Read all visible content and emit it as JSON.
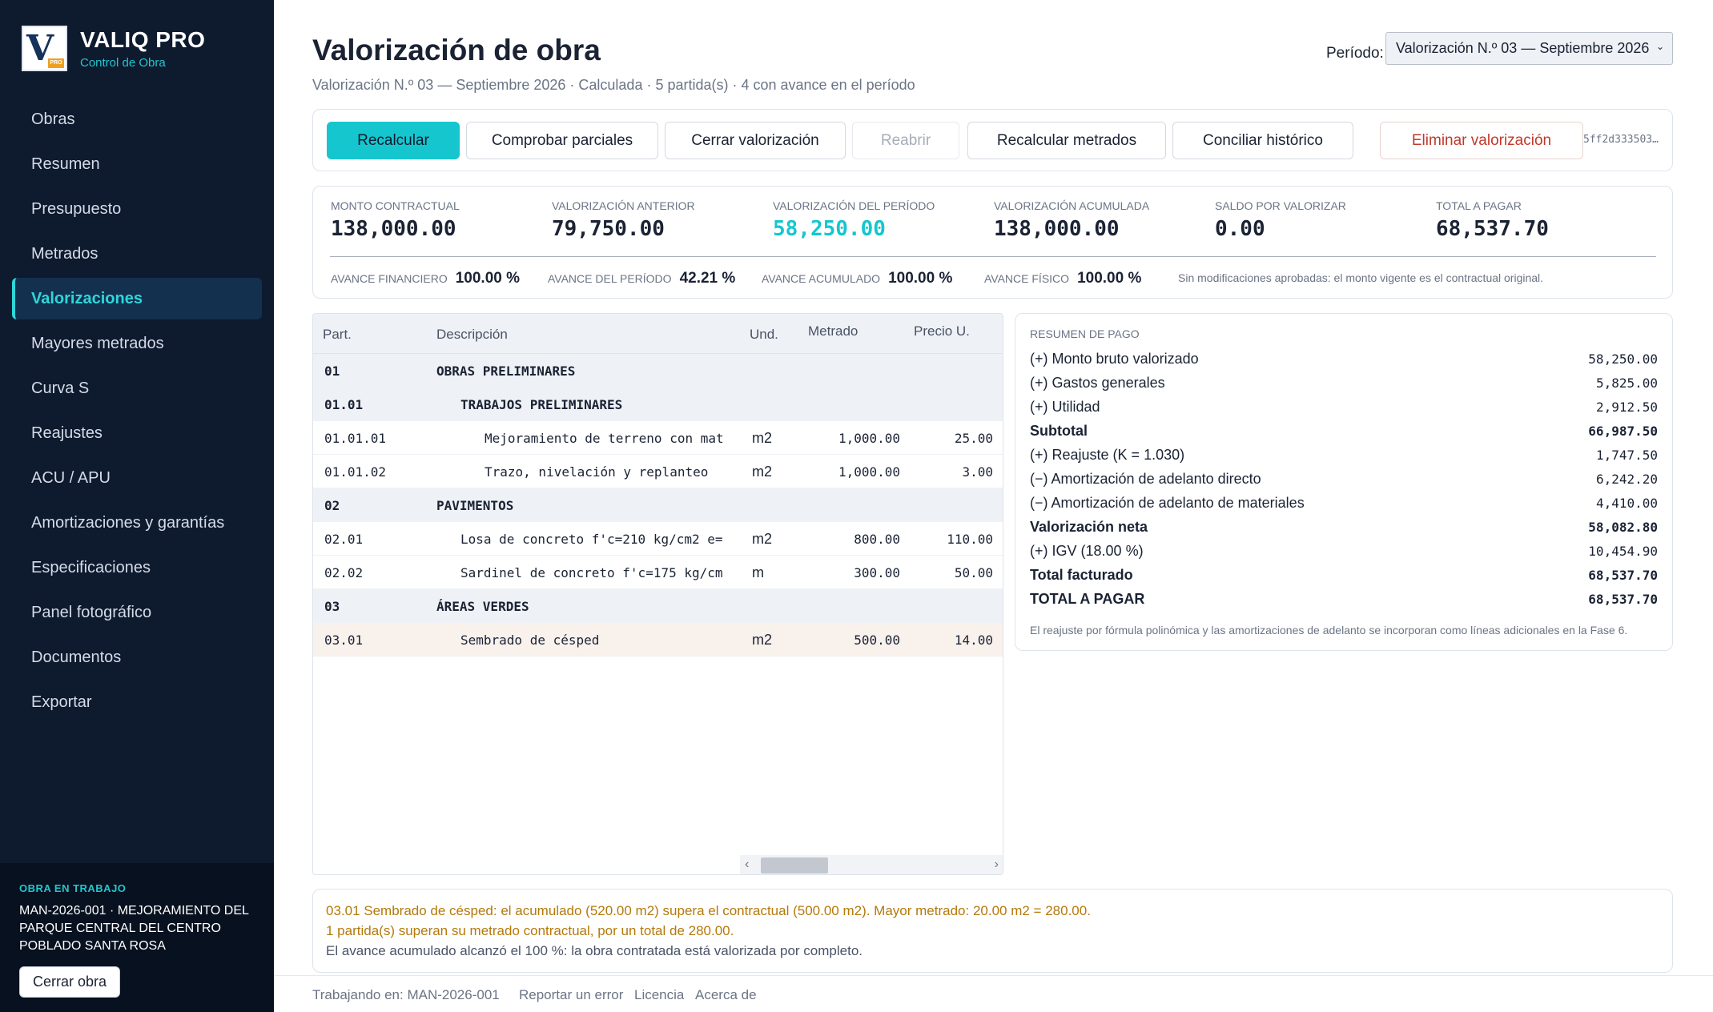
{
  "brand": {
    "name": "VALIQ PRO",
    "subtitle": "Control de Obra",
    "logo_letter": "V",
    "logo_tag": "PRO"
  },
  "nav": [
    {
      "label": "Obras"
    },
    {
      "label": "Resumen"
    },
    {
      "label": "Presupuesto"
    },
    {
      "label": "Metrados"
    },
    {
      "label": "Valorizaciones",
      "active": true
    },
    {
      "label": "Mayores metrados"
    },
    {
      "label": "Curva S"
    },
    {
      "label": "Reajustes"
    },
    {
      "label": "ACU / APU"
    },
    {
      "label": "Amortizaciones y garantías"
    },
    {
      "label": "Especificaciones"
    },
    {
      "label": "Panel fotográfico"
    },
    {
      "label": "Documentos"
    },
    {
      "label": "Exportar"
    }
  ],
  "obra": {
    "label": "OBRA EN TRABAJO",
    "name": "MAN-2026-001 · MEJORAMIENTO DEL PARQUE CENTRAL DEL CENTRO POBLADO SANTA ROSA",
    "close_label": "Cerrar obra"
  },
  "header": {
    "title": "Valorización de obra",
    "subtitle": "Valorización N.º 03 — Septiembre 2026  ·  Calculada · 5 partida(s) · 4 con avance en el período",
    "periodo_label": "Período:",
    "periodo_value": "Valorización N.º 03 — Septiembre 2026"
  },
  "toolbar": {
    "recalcular": "Recalcular",
    "comprobar": "Comprobar parciales",
    "cerrar": "Cerrar valorización",
    "reabrir": "Reabrir",
    "recalcular_metrados": "Recalcular metrados",
    "conciliar": "Conciliar histórico",
    "eliminar": "Eliminar valorización",
    "hash": "5ff2d333503…"
  },
  "summary": {
    "monto_contractual": {
      "label": "MONTO CONTRACTUAL",
      "value": "138,000.00"
    },
    "valorizacion_anterior": {
      "label": "VALORIZACIÓN ANTERIOR",
      "value": "79,750.00"
    },
    "valorizacion_periodo": {
      "label": "VALORIZACIÓN DEL PERÍODO",
      "value": "58,250.00"
    },
    "valorizacion_acumulada": {
      "label": "VALORIZACIÓN ACUMULADA",
      "value": "138,000.00"
    },
    "saldo": {
      "label": "SALDO POR VALORIZAR",
      "value": "0.00"
    },
    "total_pagar": {
      "label": "TOTAL A PAGAR",
      "value": "68,537.70"
    },
    "avance_financiero": {
      "label": "AVANCE FINANCIERO",
      "value": "100.00 %"
    },
    "avance_periodo": {
      "label": "AVANCE DEL PERÍODO",
      "value": "42.21 %"
    },
    "avance_acumulado": {
      "label": "AVANCE ACUMULADO",
      "value": "100.00 %"
    },
    "avance_fisico": {
      "label": "AVANCE FÍSICO",
      "value": "100.00 %"
    },
    "note": "Sin modificaciones aprobadas: el monto vigente es el contractual original."
  },
  "table": {
    "headers": {
      "part": "Part.",
      "desc": "Descripción",
      "und": "Und.",
      "metrado": "Metrado",
      "precio": "Precio U."
    },
    "rows": [
      {
        "part": "01",
        "desc": "OBRAS PRELIMINARES",
        "und": "",
        "metrado": "",
        "precio": "",
        "type": "group",
        "indent": 0
      },
      {
        "part": "01.01",
        "desc": "TRABAJOS PRELIMINARES",
        "und": "",
        "metrado": "",
        "precio": "",
        "type": "group",
        "indent": 1
      },
      {
        "part": "01.01.01",
        "desc": "Mejoramiento de terreno con mat",
        "und": "m2",
        "metrado": "1,000.00",
        "precio": "25.00",
        "type": "item",
        "indent": 2
      },
      {
        "part": "01.01.02",
        "desc": "Trazo, nivelación y replanteo",
        "und": "m2",
        "metrado": "1,000.00",
        "precio": "3.00",
        "type": "item",
        "indent": 2
      },
      {
        "part": "02",
        "desc": "PAVIMENTOS",
        "und": "",
        "metrado": "",
        "precio": "",
        "type": "group",
        "indent": 0
      },
      {
        "part": "02.01",
        "desc": "Losa de concreto f'c=210 kg/cm2 e=",
        "und": "m2",
        "metrado": "800.00",
        "precio": "110.00",
        "type": "item",
        "indent": 1
      },
      {
        "part": "02.02",
        "desc": "Sardinel de concreto f'c=175 kg/cm",
        "und": "m",
        "metrado": "300.00",
        "precio": "50.00",
        "type": "item",
        "indent": 1
      },
      {
        "part": "03",
        "desc": "ÁREAS VERDES",
        "und": "",
        "metrado": "",
        "precio": "",
        "type": "group",
        "indent": 0
      },
      {
        "part": "03.01",
        "desc": "Sembrado de césped",
        "und": "m2",
        "metrado": "500.00",
        "precio": "14.00",
        "type": "warn",
        "indent": 1
      }
    ]
  },
  "pago": {
    "title": "RESUMEN DE PAGO",
    "lines": [
      {
        "sign": "(+)",
        "label": "Monto bruto valorizado",
        "amount": "58,250.00",
        "bold": false
      },
      {
        "sign": "(+)",
        "label": "Gastos generales",
        "amount": "5,825.00",
        "bold": false
      },
      {
        "sign": "(+)",
        "label": "Utilidad",
        "amount": "2,912.50",
        "bold": false
      },
      {
        "sign": "",
        "label": "Subtotal",
        "amount": "66,987.50",
        "bold": true
      },
      {
        "sign": "(+)",
        "label": "Reajuste (K = 1.030)",
        "amount": "1,747.50",
        "bold": false
      },
      {
        "sign": "(−)",
        "label": "Amortización de adelanto directo",
        "amount": "6,242.20",
        "bold": false
      },
      {
        "sign": "(−)",
        "label": "Amortización de adelanto de materiales",
        "amount": "4,410.00",
        "bold": false
      },
      {
        "sign": "",
        "label": "Valorización neta",
        "amount": "58,082.80",
        "bold": true
      },
      {
        "sign": "(+)",
        "label": "IGV (18.00 %)",
        "amount": "10,454.90",
        "bold": false
      },
      {
        "sign": "",
        "label": "Total facturado",
        "amount": "68,537.70",
        "bold": true
      },
      {
        "sign": "",
        "label": "TOTAL A PAGAR",
        "amount": "68,537.70",
        "bold": true
      }
    ],
    "note": "El reajuste por fórmula polinómica y las amortizaciones de adelanto se incorporan como líneas adicionales en la Fase 6."
  },
  "alerts": [
    {
      "text": "03.01 Sembrado de césped: el acumulado (520.00 m2) supera el contractual (500.00 m2). Mayor metrado: 20.00 m2 = 280.00.",
      "level": "warn"
    },
    {
      "text": "1 partida(s) superan su metrado contractual, por un total de 280.00.",
      "level": "warn"
    },
    {
      "text": "El avance acumulado alcanzó el 100 %: la obra contratada está valorizada por completo.",
      "level": "info"
    }
  ],
  "footer": {
    "working": "Trabajando en: MAN-2026-001",
    "report": "Reportar un error",
    "license": "Licencia",
    "about": "Acerca de"
  }
}
